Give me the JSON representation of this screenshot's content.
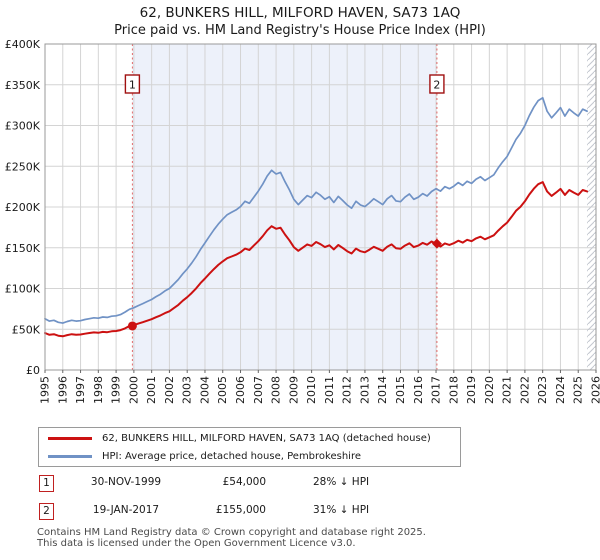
{
  "chart_data": {
    "type": "line",
    "title": "62, BUNKERS HILL, MILFORD HAVEN, SA73 1AQ",
    "subtitle": "Price paid vs. HM Land Registry's House Price Index (HPI)",
    "x_range": [
      1995,
      2026
    ],
    "y_range": [
      0,
      400000
    ],
    "x_start": 1995,
    "x_step": 0.25,
    "grid": true,
    "legend_position": "bottom",
    "y_tick_labels": [
      "£400K",
      "£350K",
      "£300K",
      "£250K",
      "£200K",
      "£150K",
      "£100K",
      "£50K",
      "£0"
    ],
    "x_ticks": [
      1995,
      1996,
      1997,
      1998,
      1999,
      2000,
      2001,
      2002,
      2003,
      2004,
      2005,
      2006,
      2007,
      2008,
      2009,
      2010,
      2011,
      2012,
      2013,
      2014,
      2015,
      2016,
      2017,
      2018,
      2019,
      2020,
      2021,
      2022,
      2023,
      2024,
      2025,
      2026
    ],
    "series": [
      {
        "name": "62, BUNKERS HILL, MILFORD HAVEN, SA73 1AQ (detached house)",
        "color": "#cc1111",
        "values": [
          45400,
          43200,
          43900,
          42100,
          41400,
          42800,
          43900,
          43200,
          43600,
          44600,
          45400,
          46100,
          45700,
          46800,
          46400,
          47500,
          47900,
          49000,
          51100,
          54000,
          55100,
          56900,
          58700,
          60500,
          62300,
          64800,
          67000,
          69800,
          72000,
          76000,
          79900,
          85000,
          89300,
          94300,
          100100,
          106600,
          112300,
          118100,
          123800,
          128900,
          133200,
          137200,
          139300,
          141500,
          144400,
          149000,
          147200,
          152600,
          158000,
          164200,
          171400,
          176400,
          173200,
          174600,
          166300,
          159100,
          150800,
          146200,
          150100,
          154100,
          152300,
          157000,
          154400,
          150800,
          153000,
          148000,
          153400,
          149800,
          145800,
          142900,
          149000,
          145800,
          144400,
          147600,
          151200,
          148700,
          146200,
          151200,
          154100,
          149400,
          148700,
          152600,
          155500,
          150800,
          152600,
          155900,
          153700,
          157700,
          155000,
          151500,
          155300,
          153500,
          155600,
          158700,
          156300,
          159700,
          158000,
          161500,
          163500,
          160400,
          162800,
          165300,
          171100,
          176300,
          180800,
          188000,
          195300,
          200400,
          207000,
          215300,
          222500,
          228000,
          230500,
          219100,
          213600,
          217700,
          222200,
          214900,
          220800,
          217700,
          214900,
          220800,
          219100
        ]
      },
      {
        "name": "HPI: Average price, detached house, Pembrokeshire",
        "color": "#7092c5",
        "values": [
          63000,
          60000,
          61000,
          58500,
          57500,
          59500,
          61000,
          60000,
          60500,
          62000,
          63000,
          64000,
          63500,
          65000,
          64500,
          66000,
          66500,
          68000,
          71000,
          74500,
          76500,
          79000,
          81500,
          84000,
          86500,
          90000,
          93000,
          97000,
          100000,
          105500,
          111000,
          118000,
          124000,
          131000,
          139000,
          148000,
          156000,
          164000,
          172000,
          179000,
          185000,
          190500,
          193500,
          196500,
          200500,
          207000,
          204500,
          212000,
          219500,
          228000,
          238000,
          245000,
          240500,
          242500,
          231000,
          221000,
          209500,
          203000,
          208500,
          214000,
          211500,
          218000,
          214500,
          209500,
          212500,
          205500,
          213000,
          208000,
          202500,
          198500,
          207000,
          202500,
          200500,
          205000,
          210000,
          206500,
          203000,
          210000,
          214000,
          207500,
          206500,
          212000,
          216000,
          209500,
          212000,
          216500,
          213500,
          219000,
          222500,
          219500,
          225000,
          222500,
          225500,
          230000,
          226500,
          231500,
          229000,
          234000,
          237000,
          232500,
          236000,
          239500,
          248000,
          255500,
          262000,
          272500,
          283000,
          290500,
          300000,
          312000,
          322500,
          330500,
          334000,
          317500,
          309500,
          315500,
          322000,
          311500,
          320000,
          315500,
          311500,
          320000,
          317500
        ]
      }
    ],
    "sale_markers": [
      {
        "label": "1",
        "x": 1999.917,
        "y": 54000,
        "shape": "circle"
      },
      {
        "label": "2",
        "x": 2017.05,
        "y": 155000,
        "shape": "diamond"
      }
    ],
    "shaded_span": {
      "from": 1999.917,
      "to": 2017.05,
      "color": "#edf1fa"
    },
    "hatch_span": {
      "from": 2025.5,
      "to": 2026
    },
    "dashed_line_color": "#e36a6a",
    "grid_color": "#d4d4d4",
    "border_color": "#999999"
  },
  "annotations": [
    {
      "num": "1",
      "date": "30-NOV-1999",
      "price": "£54,000",
      "hpi": "28% ↓ HPI"
    },
    {
      "num": "2",
      "date": "19-JAN-2017",
      "price": "£155,000",
      "hpi": "31% ↓ HPI"
    }
  ],
  "footer": {
    "line1": "Contains HM Land Registry data © Crown copyright and database right 2025.",
    "line2": "This data is licensed under the Open Government Licence v3.0."
  }
}
